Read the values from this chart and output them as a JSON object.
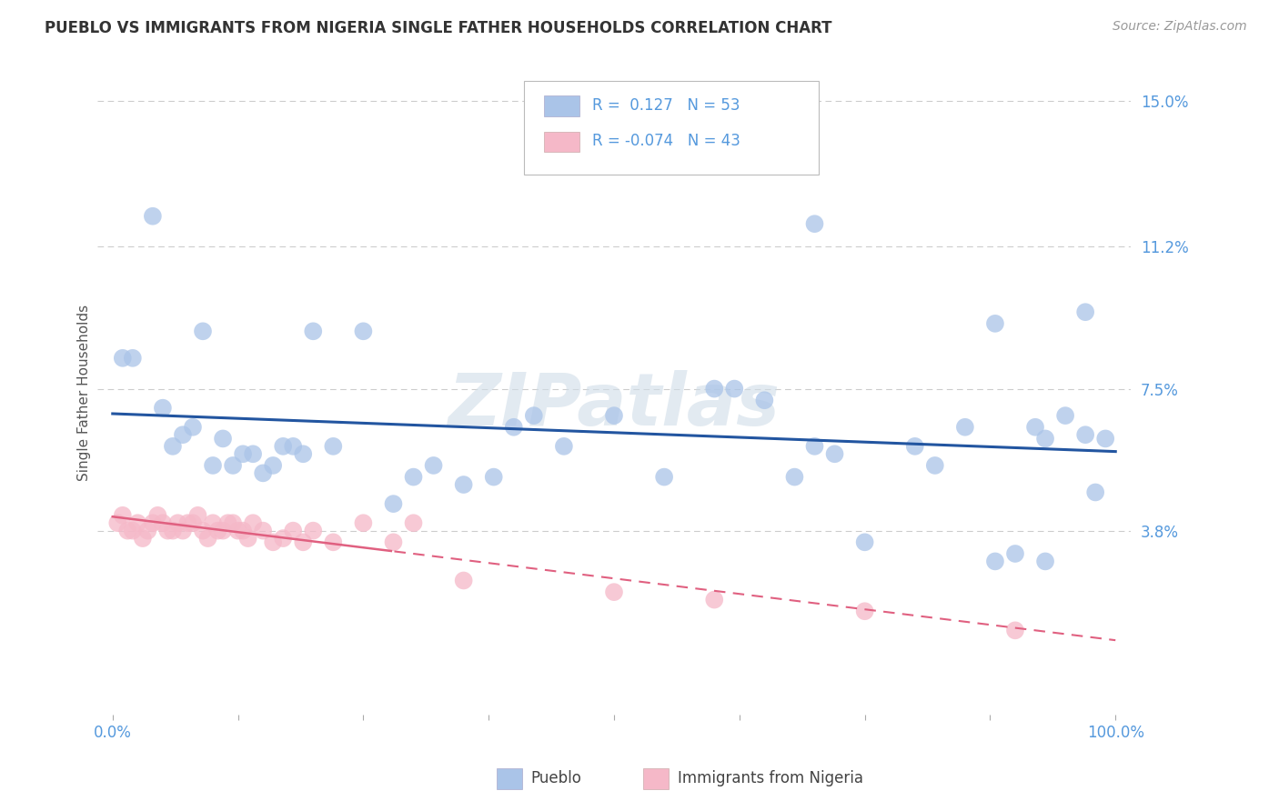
{
  "title": "PUEBLO VS IMMIGRANTS FROM NIGERIA SINGLE FATHER HOUSEHOLDS CORRELATION CHART",
  "source": "Source: ZipAtlas.com",
  "ylabel": "Single Father Households",
  "ytick_vals": [
    0.038,
    0.075,
    0.112,
    0.15
  ],
  "ytick_labels": [
    "3.8%",
    "7.5%",
    "11.2%",
    "15.0%"
  ],
  "xlim": [
    0.0,
    1.0
  ],
  "ylim": [
    -0.01,
    0.158
  ],
  "watermark": "ZIPatlas",
  "blue_color": "#aac4e8",
  "pink_color": "#f5b8c8",
  "line_blue": "#2255a0",
  "line_pink": "#e06080",
  "title_color": "#333333",
  "axis_label_color": "#5599dd",
  "tick_color": "#888888",
  "pueblo_x": [
    0.01,
    0.02,
    0.04,
    0.05,
    0.06,
    0.07,
    0.08,
    0.09,
    0.1,
    0.11,
    0.12,
    0.13,
    0.14,
    0.15,
    0.16,
    0.17,
    0.18,
    0.19,
    0.2,
    0.22,
    0.25,
    0.28,
    0.3,
    0.32,
    0.35,
    0.38,
    0.4,
    0.42,
    0.45,
    0.5,
    0.55,
    0.6,
    0.62,
    0.65,
    0.68,
    0.7,
    0.72,
    0.75,
    0.8,
    0.82,
    0.85,
    0.88,
    0.9,
    0.92,
    0.93,
    0.95,
    0.97,
    0.98,
    0.99,
    0.7,
    0.88,
    0.93,
    0.97
  ],
  "pueblo_y": [
    0.083,
    0.083,
    0.12,
    0.07,
    0.06,
    0.063,
    0.065,
    0.09,
    0.055,
    0.062,
    0.055,
    0.058,
    0.058,
    0.053,
    0.055,
    0.06,
    0.06,
    0.058,
    0.09,
    0.06,
    0.09,
    0.045,
    0.052,
    0.055,
    0.05,
    0.052,
    0.065,
    0.068,
    0.06,
    0.068,
    0.052,
    0.075,
    0.075,
    0.072,
    0.052,
    0.06,
    0.058,
    0.035,
    0.06,
    0.055,
    0.065,
    0.03,
    0.032,
    0.065,
    0.062,
    0.068,
    0.063,
    0.048,
    0.062,
    0.118,
    0.092,
    0.03,
    0.095
  ],
  "nigeria_x": [
    0.005,
    0.01,
    0.015,
    0.02,
    0.025,
    0.03,
    0.035,
    0.04,
    0.045,
    0.05,
    0.055,
    0.06,
    0.065,
    0.07,
    0.075,
    0.08,
    0.085,
    0.09,
    0.095,
    0.1,
    0.105,
    0.11,
    0.115,
    0.12,
    0.125,
    0.13,
    0.135,
    0.14,
    0.15,
    0.16,
    0.17,
    0.18,
    0.19,
    0.2,
    0.22,
    0.25,
    0.28,
    0.3,
    0.35,
    0.5,
    0.6,
    0.75,
    0.9
  ],
  "nigeria_y": [
    0.04,
    0.042,
    0.038,
    0.038,
    0.04,
    0.036,
    0.038,
    0.04,
    0.042,
    0.04,
    0.038,
    0.038,
    0.04,
    0.038,
    0.04,
    0.04,
    0.042,
    0.038,
    0.036,
    0.04,
    0.038,
    0.038,
    0.04,
    0.04,
    0.038,
    0.038,
    0.036,
    0.04,
    0.038,
    0.035,
    0.036,
    0.038,
    0.035,
    0.038,
    0.035,
    0.04,
    0.035,
    0.04,
    0.025,
    0.022,
    0.02,
    0.017,
    0.012
  ]
}
